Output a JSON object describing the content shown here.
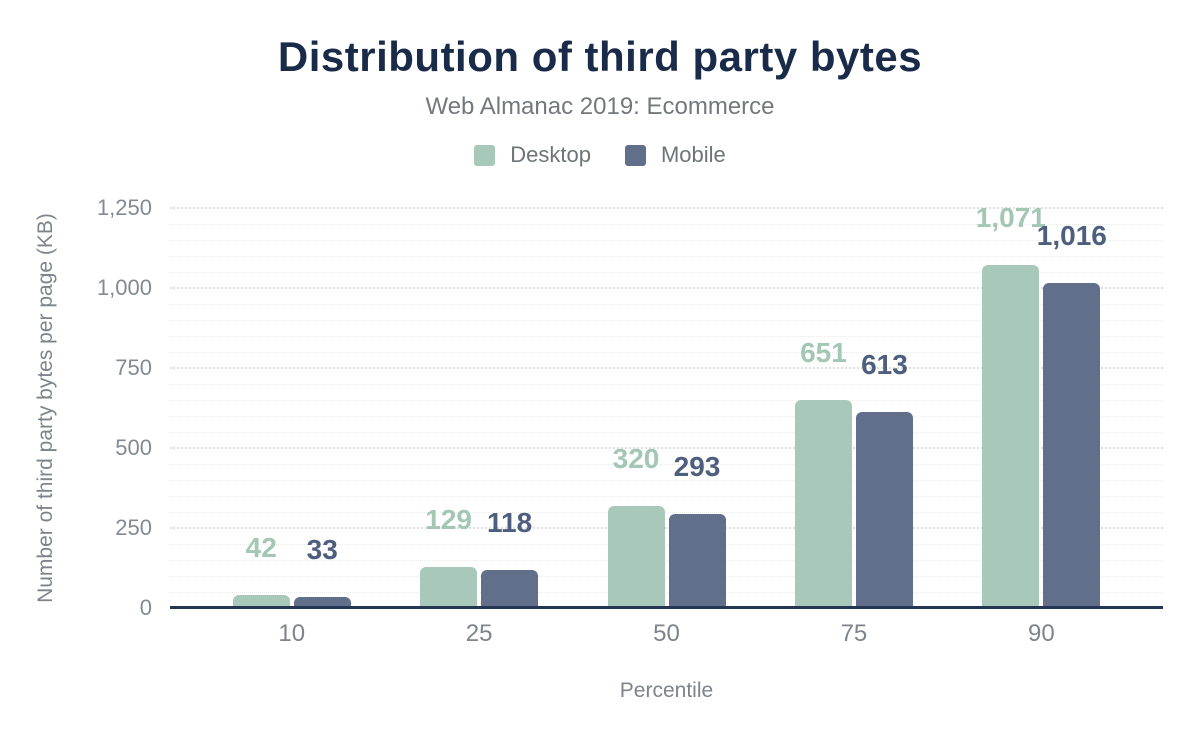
{
  "chart_data": {
    "type": "bar",
    "title": "Distribution of third party bytes",
    "subtitle": "Web Almanac 2019: Ecommerce",
    "xlabel": "Percentile",
    "ylabel": "Number of third party bytes per page (KB)",
    "categories": [
      "10",
      "25",
      "50",
      "75",
      "90"
    ],
    "series": [
      {
        "name": "Desktop",
        "values": [
          42,
          129,
          320,
          651,
          1071
        ],
        "labels": [
          "42",
          "129",
          "320",
          "651",
          "1,071"
        ],
        "color": "#a8c9ba",
        "label_color": "#a3c7b4"
      },
      {
        "name": "Mobile",
        "values": [
          33,
          118,
          293,
          613,
          1016
        ],
        "labels": [
          "33",
          "118",
          "293",
          "613",
          "1,016"
        ],
        "color": "#626f8a",
        "label_color": "#4e5e7e"
      }
    ],
    "ylim": [
      0,
      1250
    ],
    "yticks": [
      {
        "value": 0,
        "label": "0"
      },
      {
        "value": 250,
        "label": "250"
      },
      {
        "value": 500,
        "label": "500"
      },
      {
        "value": 750,
        "label": "750"
      },
      {
        "value": 1000,
        "label": "1,000"
      },
      {
        "value": 1250,
        "label": "1,250"
      }
    ],
    "grid": {
      "minor_step": 50,
      "major_step": 250,
      "style": "dotted"
    },
    "legend_position": "top",
    "colors": {
      "title": "#1a2b49",
      "subtitle_text": "#74787c",
      "axis_text": "#7d848c",
      "baseline": "#243653",
      "background": "#ffffff"
    }
  }
}
